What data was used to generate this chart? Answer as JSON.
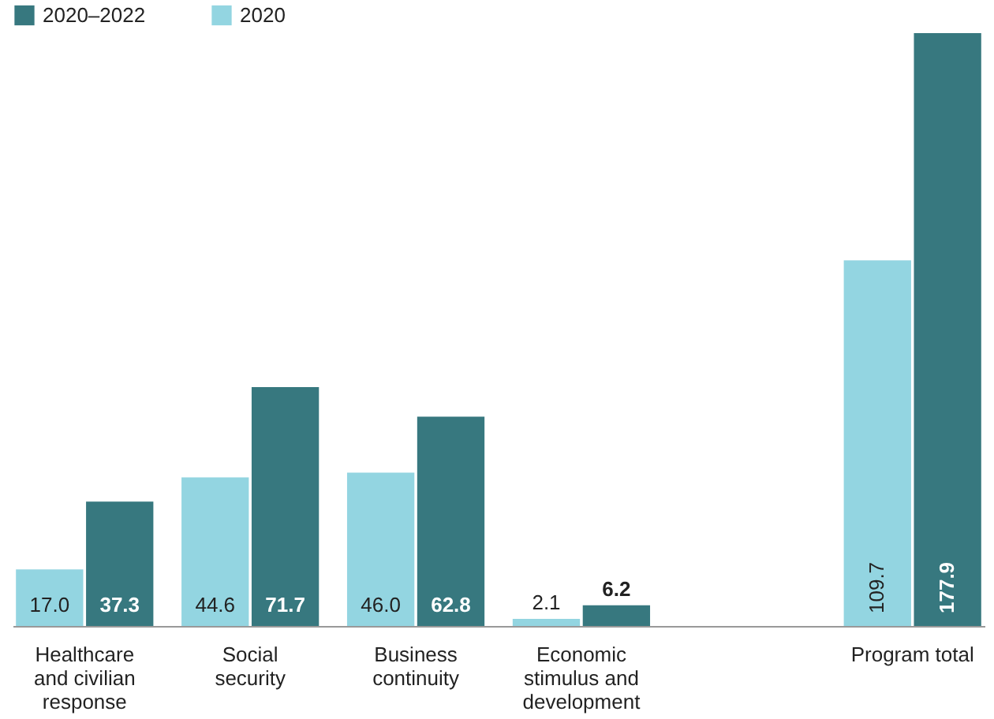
{
  "chart_data": {
    "type": "bar",
    "categories": [
      "Healthcare and civilian response",
      "Social security",
      "Business continuity",
      "Economic stimulus and development",
      null,
      "Program total"
    ],
    "series": [
      {
        "name": "2020",
        "color": "#93d5e1",
        "values": [
          17.0,
          44.6,
          46.0,
          2.1,
          null,
          109.7
        ],
        "value_labels": [
          "17.0",
          "44.6",
          "46.0",
          "2.1",
          null,
          "109.7"
        ]
      },
      {
        "name": "2020–2022",
        "color": "#37787f",
        "values": [
          37.3,
          71.7,
          62.8,
          6.2,
          null,
          177.9
        ],
        "value_labels": [
          "37.3",
          "71.7",
          "62.8",
          "6.2",
          null,
          "177.9"
        ]
      }
    ],
    "legend": "top left"
  }
}
